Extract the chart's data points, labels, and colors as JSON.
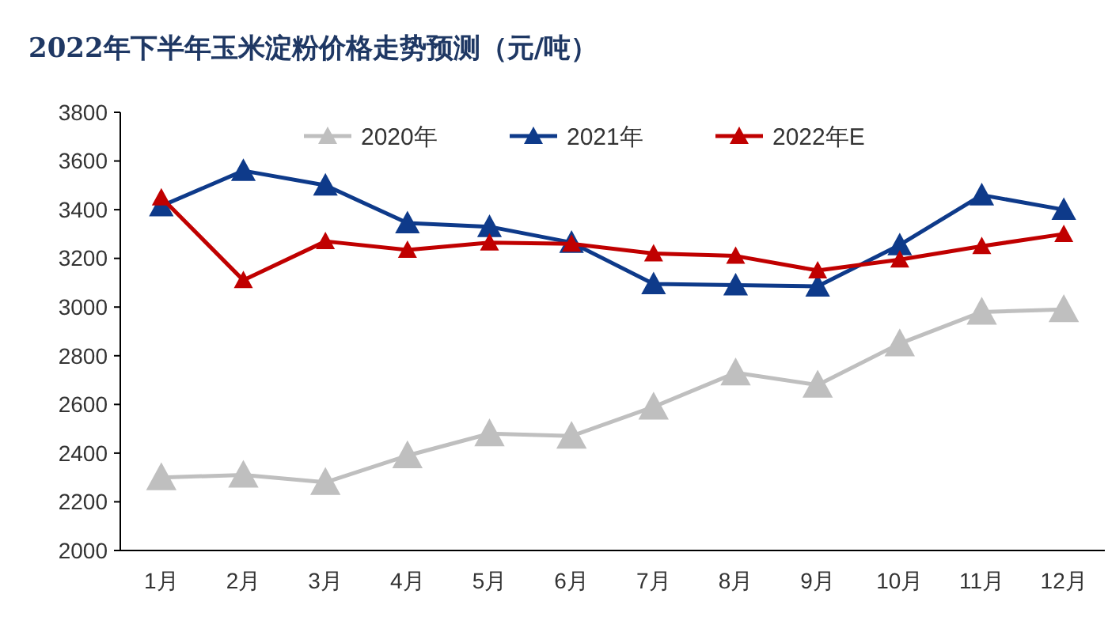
{
  "chart_data": {
    "type": "line",
    "title": "2022年下半年玉米淀粉价格走势预测（元/吨）",
    "categories": [
      "1月",
      "2月",
      "3月",
      "4月",
      "5月",
      "6月",
      "7月",
      "8月",
      "9月",
      "10月",
      "11月",
      "12月"
    ],
    "series": [
      {
        "name": "2020年",
        "color": "#bfbfbf",
        "values": [
          2300,
          2310,
          2280,
          2390,
          2480,
          2470,
          2590,
          2730,
          2680,
          2850,
          2980,
          2990
        ]
      },
      {
        "name": "2021年",
        "color": "#0e3a8a",
        "values": [
          3415,
          3560,
          3500,
          3345,
          3330,
          3265,
          3095,
          3090,
          3085,
          3255,
          3460,
          3400
        ]
      },
      {
        "name": "2022年E",
        "color": "#c00000",
        "values": [
          3450,
          3110,
          3270,
          3235,
          3265,
          3260,
          3220,
          3210,
          3150,
          3195,
          3250,
          3300
        ]
      }
    ],
    "ylim": [
      2000,
      3800
    ],
    "yticks": [
      2000,
      2200,
      2400,
      2600,
      2800,
      3000,
      3200,
      3400,
      3600,
      3800
    ],
    "marker": "triangle",
    "line_style": "solid",
    "legend": "top",
    "grid": false
  }
}
